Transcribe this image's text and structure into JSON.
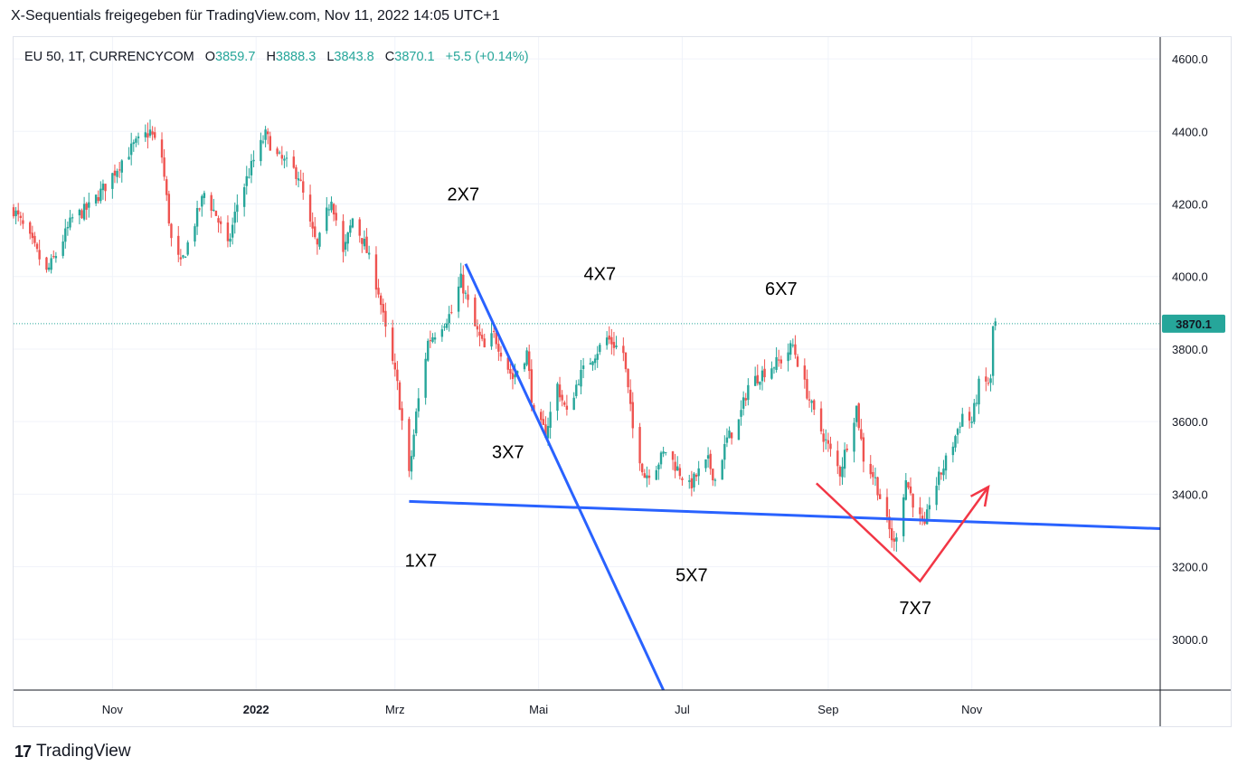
{
  "header": {
    "text": "X-Sequentials freigegeben für TradingView.com, Nov 11, 2022 14:05 UTC+1"
  },
  "legend": {
    "symbol": "EU 50, 1T, CURRENCYCOM",
    "open_label": "O",
    "open": "3859.7",
    "high_label": "H",
    "high": "3888.3",
    "low_label": "L",
    "low": "3843.8",
    "close_label": "C",
    "close": "3870.1",
    "change": "+5.5 (+0.14%)"
  },
  "footer": {
    "brand": "TradingView",
    "logo_text": "17"
  },
  "colors": {
    "up": "#26a69a",
    "down": "#ef5350",
    "trendline": "#2962ff",
    "arrow": "#f23645",
    "price_label_bg": "#26a69a"
  },
  "chart_data": {
    "type": "candlestick",
    "price_label": "3870.1",
    "y_ticks": [
      "4600.0",
      "4400.0",
      "4200.0",
      "4000.0",
      "3800.0",
      "3600.0",
      "3400.0",
      "3200.0",
      "3000.0"
    ],
    "ylim": [
      2860,
      4660
    ],
    "x_ticks": [
      {
        "label": "Nov",
        "date": "2021-11-01",
        "bold": false
      },
      {
        "label": "2022",
        "date": "2022-01-01",
        "bold": true
      },
      {
        "label": "Mrz",
        "date": "2022-03-01",
        "bold": false
      },
      {
        "label": "Mai",
        "date": "2022-05-01",
        "bold": false
      },
      {
        "label": "Jul",
        "date": "2022-07-01",
        "bold": false
      },
      {
        "label": "Sep",
        "date": "2022-09-01",
        "bold": false
      },
      {
        "label": "Nov",
        "date": "2022-11-01",
        "bold": false
      }
    ],
    "xlim": [
      "2021-09-20",
      "2023-01-20"
    ],
    "close_path": [
      [
        "2021-09-20",
        4185
      ],
      [
        "2021-09-28",
        4090
      ],
      [
        "2021-10-04",
        4010
      ],
      [
        "2021-10-08",
        4060
      ],
      [
        "2021-10-15",
        4160
      ],
      [
        "2021-10-22",
        4190
      ],
      [
        "2021-10-29",
        4250
      ],
      [
        "2021-11-05",
        4320
      ],
      [
        "2021-11-10",
        4360
      ],
      [
        "2021-11-17",
        4400
      ],
      [
        "2021-11-22",
        4330
      ],
      [
        "2021-11-26",
        4100
      ],
      [
        "2021-11-30",
        4030
      ],
      [
        "2021-12-06",
        4150
      ],
      [
        "2021-12-10",
        4230
      ],
      [
        "2021-12-15",
        4170
      ],
      [
        "2021-12-20",
        4080
      ],
      [
        "2021-12-24",
        4200
      ],
      [
        "2021-12-31",
        4320
      ],
      [
        "2022-01-05",
        4390
      ],
      [
        "2022-01-10",
        4330
      ],
      [
        "2022-01-14",
        4310
      ],
      [
        "2022-01-19",
        4280
      ],
      [
        "2022-01-24",
        4140
      ],
      [
        "2022-01-27",
        4080
      ],
      [
        "2022-02-02",
        4220
      ],
      [
        "2022-02-07",
        4060
      ],
      [
        "2022-02-11",
        4160
      ],
      [
        "2022-02-16",
        4090
      ],
      [
        "2022-02-22",
        3960
      ],
      [
        "2022-02-25",
        3850
      ],
      [
        "2022-03-02",
        3700
      ],
      [
        "2022-03-07",
        3450
      ],
      [
        "2022-03-10",
        3620
      ],
      [
        "2022-03-15",
        3820
      ],
      [
        "2022-03-21",
        3870
      ],
      [
        "2022-03-25",
        3900
      ],
      [
        "2022-03-29",
        3990
      ],
      [
        "2022-04-04",
        3860
      ],
      [
        "2022-04-08",
        3800
      ],
      [
        "2022-04-12",
        3840
      ],
      [
        "2022-04-20",
        3720
      ],
      [
        "2022-04-26",
        3790
      ],
      [
        "2022-04-29",
        3610
      ],
      [
        "2022-05-04",
        3570
      ],
      [
        "2022-05-09",
        3700
      ],
      [
        "2022-05-13",
        3620
      ],
      [
        "2022-05-18",
        3720
      ],
      [
        "2022-05-24",
        3780
      ],
      [
        "2022-05-30",
        3830
      ],
      [
        "2022-06-06",
        3790
      ],
      [
        "2022-06-10",
        3580
      ],
      [
        "2022-06-15",
        3450
      ],
      [
        "2022-06-20",
        3480
      ],
      [
        "2022-06-24",
        3520
      ],
      [
        "2022-06-28",
        3480
      ],
      [
        "2022-07-04",
        3420
      ],
      [
        "2022-07-08",
        3460
      ],
      [
        "2022-07-12",
        3490
      ],
      [
        "2022-07-15",
        3440
      ],
      [
        "2022-07-20",
        3550
      ],
      [
        "2022-07-25",
        3600
      ],
      [
        "2022-07-29",
        3700
      ],
      [
        "2022-08-05",
        3740
      ],
      [
        "2022-08-12",
        3770
      ],
      [
        "2022-08-17",
        3810
      ],
      [
        "2022-08-22",
        3700
      ],
      [
        "2022-08-26",
        3620
      ],
      [
        "2022-09-01",
        3530
      ],
      [
        "2022-09-06",
        3460
      ],
      [
        "2022-09-09",
        3540
      ],
      [
        "2022-09-13",
        3640
      ],
      [
        "2022-09-16",
        3500
      ],
      [
        "2022-09-21",
        3440
      ],
      [
        "2022-09-26",
        3320
      ],
      [
        "2022-09-29",
        3260
      ],
      [
        "2022-10-04",
        3440
      ],
      [
        "2022-10-07",
        3380
      ],
      [
        "2022-10-12",
        3300
      ],
      [
        "2022-10-14",
        3380
      ],
      [
        "2022-10-19",
        3460
      ],
      [
        "2022-10-24",
        3540
      ],
      [
        "2022-10-28",
        3620
      ],
      [
        "2022-11-01",
        3600
      ],
      [
        "2022-11-04",
        3700
      ],
      [
        "2022-11-09",
        3710
      ],
      [
        "2022-11-10",
        3860
      ],
      [
        "2022-11-11",
        3870
      ]
    ],
    "lines": [
      {
        "name": "support-trendline",
        "color": "#2962ff",
        "points": [
          [
            "2022-03-07",
            3380
          ],
          [
            "2023-01-20",
            3305
          ]
        ]
      },
      {
        "name": "resistance-trendline",
        "color": "#2962ff",
        "points": [
          [
            "2022-03-31",
            4035
          ],
          [
            "2022-06-23",
            2860
          ]
        ]
      }
    ],
    "arrow": {
      "color": "#f23645",
      "points": [
        [
          "2022-08-27",
          3430
        ],
        [
          "2022-10-10",
          3160
        ],
        [
          "2022-11-08",
          3420
        ]
      ]
    },
    "annotations": [
      {
        "text": "1X7",
        "date": "2022-03-12",
        "price": 3200
      },
      {
        "text": "2X7",
        "date": "2022-03-30",
        "price": 4210
      },
      {
        "text": "3X7",
        "date": "2022-04-18",
        "price": 3500
      },
      {
        "text": "4X7",
        "date": "2022-05-27",
        "price": 3990
      },
      {
        "text": "5X7",
        "date": "2022-07-05",
        "price": 3160
      },
      {
        "text": "6X7",
        "date": "2022-08-12",
        "price": 3950
      },
      {
        "text": "7X7",
        "date": "2022-10-08",
        "price": 3070
      }
    ]
  }
}
